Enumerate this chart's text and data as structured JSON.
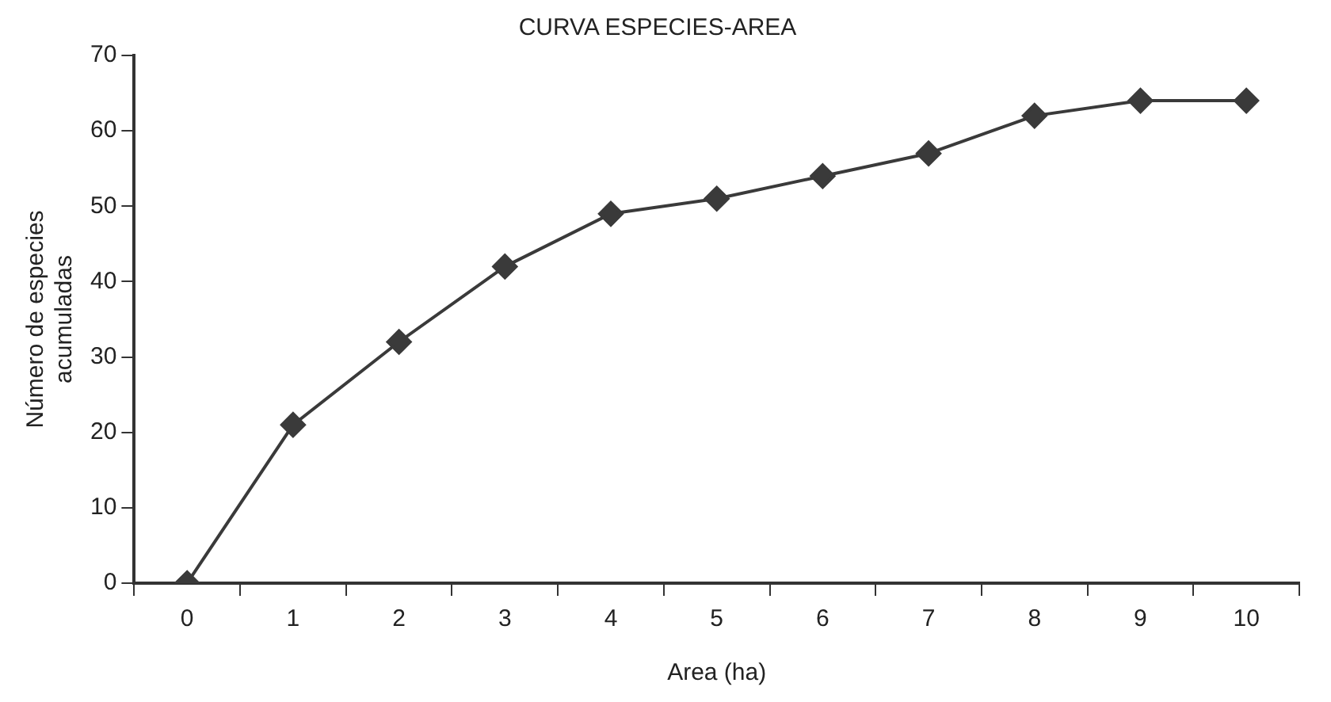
{
  "chart_data": {
    "type": "line",
    "title": "CURVA ESPECIES-AREA",
    "xlabel": "Area (ha)",
    "ylabel": "Número de especies acumuladas",
    "categories": [
      "0",
      "1",
      "2",
      "3",
      "4",
      "5",
      "6",
      "7",
      "8",
      "9",
      "10"
    ],
    "series": [
      {
        "color": "#3a3a3a",
        "values": [
          0,
          21,
          32,
          42,
          49,
          51,
          54,
          57,
          62,
          64,
          64
        ]
      }
    ],
    "ylim": [
      0,
      70
    ],
    "yticks": [
      0,
      10,
      20,
      30,
      40,
      50,
      60,
      70
    ],
    "grid": false,
    "legend": false,
    "marker": "diamond",
    "line_style": "solid"
  }
}
